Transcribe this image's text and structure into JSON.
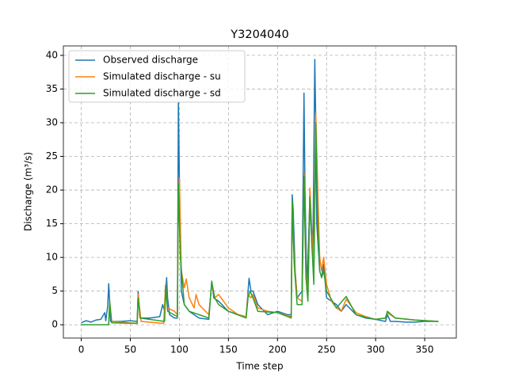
{
  "chart_data": {
    "type": "line",
    "title": "Y3204040",
    "x_label": "Time step",
    "y_label": "Discharge (m³/s)",
    "xlim": [
      -18.2,
      382.2
    ],
    "ylim": [
      -1.97,
      41.4
    ],
    "xticks": [
      0,
      50,
      100,
      150,
      200,
      250,
      300,
      350
    ],
    "yticks": [
      0,
      5,
      10,
      15,
      20,
      25,
      30,
      35,
      40
    ],
    "grid": true,
    "legend": "upper left",
    "series": [
      {
        "name": "Observed discharge",
        "color": "#1f77b4",
        "x": [
          0,
          5,
          10,
          15,
          20,
          24,
          25,
          27,
          28,
          30,
          40,
          50,
          57,
          58,
          60,
          70,
          80,
          83,
          85,
          87,
          88,
          90,
          95,
          98,
          99,
          100,
          102,
          105,
          110,
          120,
          130,
          133,
          135,
          140,
          150,
          160,
          168,
          170,
          171,
          173,
          175,
          180,
          190,
          200,
          210,
          214,
          215,
          216,
          218,
          220,
          225,
          227,
          228,
          230,
          233,
          235,
          236,
          238,
          239,
          240,
          243,
          245,
          247,
          250,
          260,
          265,
          270,
          280,
          290,
          300,
          310,
          312,
          315,
          320,
          330,
          340,
          350,
          364
        ],
        "values": [
          0.3,
          0.6,
          0.4,
          0.7,
          0.8,
          1.8,
          0.6,
          2.8,
          6.1,
          0.5,
          0.5,
          0.6,
          0.5,
          4.9,
          1,
          1,
          1.2,
          3,
          2,
          7,
          4,
          1.5,
          1,
          1,
          33,
          22,
          5,
          3,
          2,
          1,
          0.8,
          6.5,
          4,
          3.5,
          2,
          1.5,
          1.2,
          5,
          6.9,
          5,
          5,
          3,
          1.5,
          2,
          1.5,
          1.5,
          19.3,
          17,
          8,
          4,
          5,
          34.4,
          20,
          5,
          19,
          12,
          10,
          39.4,
          30,
          15,
          8,
          7,
          9,
          4,
          3,
          2,
          3,
          1.5,
          1,
          0.8,
          0.5,
          1.5,
          0.5,
          0.5,
          0.4,
          0.4,
          0.5,
          0.5
        ]
      },
      {
        "name": "Simulated discharge - su",
        "color": "#ff7f0e",
        "x": [
          0,
          28,
          29,
          31,
          57,
          58,
          61,
          84,
          86,
          88,
          95,
          98,
          99,
          100,
          102,
          105,
          107,
          110,
          115,
          117,
          120,
          130,
          133,
          136,
          140,
          150,
          160,
          168,
          170,
          173,
          175,
          180,
          190,
          200,
          214,
          215,
          217,
          220,
          225,
          227,
          229,
          231,
          233,
          235,
          237,
          239,
          241,
          243,
          245,
          247,
          250,
          255,
          260,
          265,
          270,
          280,
          290,
          300,
          310,
          312,
          320,
          340,
          364
        ],
        "values": [
          0,
          0,
          3.5,
          0.5,
          0.2,
          4.5,
          0.5,
          0.2,
          6,
          2.5,
          2,
          1.5,
          20,
          21.8,
          8,
          5.5,
          6.8,
          4,
          2.5,
          4.5,
          3,
          1.5,
          6,
          4,
          4.5,
          2.5,
          1.5,
          1.2,
          4.5,
          4,
          4.5,
          2.5,
          2,
          1.8,
          1.2,
          18,
          10,
          4,
          3.5,
          22.5,
          8,
          4,
          20.3,
          14,
          8,
          31.4,
          20,
          10,
          8,
          10,
          6,
          3.5,
          2.5,
          2,
          3.8,
          1.8,
          1.2,
          0.8,
          1,
          1.8,
          1,
          0.7,
          0.5
        ]
      },
      {
        "name": "Simulated discharge - sd",
        "color": "#2ca02c",
        "x": [
          0,
          28,
          29,
          31,
          57,
          58,
          60,
          85,
          86,
          88,
          98,
          99,
          101,
          105,
          110,
          120,
          130,
          133,
          136,
          140,
          150,
          168,
          170,
          172,
          175,
          180,
          200,
          214,
          215,
          217,
          220,
          225,
          227,
          229,
          231,
          233,
          235,
          237,
          239,
          241,
          243,
          245,
          247,
          250,
          260,
          270,
          280,
          290,
          300,
          310,
          312,
          320,
          340,
          364
        ],
        "values": [
          0,
          0,
          3.5,
          0.3,
          0.2,
          4,
          1,
          0.5,
          5.8,
          2,
          1.2,
          20.9,
          10,
          3,
          2,
          1.5,
          1,
          6.4,
          4,
          3,
          2,
          1,
          4,
          5,
          4,
          2,
          1.8,
          1,
          18.5,
          9,
          3,
          3,
          22,
          7,
          3.5,
          19,
          12,
          6,
          30,
          15,
          8,
          7,
          8,
          5,
          2.5,
          4.2,
          1.5,
          1.1,
          0.8,
          1,
          2,
          1,
          0.7,
          0.5
        ]
      }
    ]
  }
}
